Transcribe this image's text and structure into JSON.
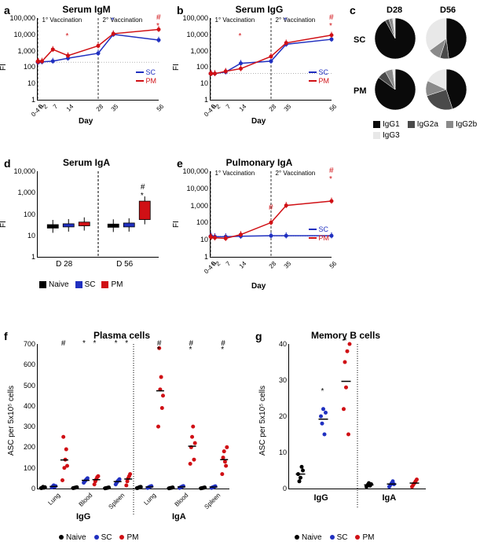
{
  "colors": {
    "sc": "#2030c0",
    "pm": "#d01015",
    "naive": "#000000",
    "igg1": "#0a0a0a",
    "igg2a": "#4a4a4a",
    "igg2b": "#8a8a8a",
    "igg3": "#e8e8e8",
    "grid": "#bbbbbb"
  },
  "panels": {
    "a": {
      "label": "a",
      "title": "Serum IgM",
      "ylabel": "FI",
      "xlabel": "Day",
      "ylim": [
        1,
        100000
      ],
      "yticks": [
        1,
        10,
        100,
        1000,
        10000,
        100000
      ],
      "xticks": [
        "0",
        "0-4 h",
        "2",
        "7",
        "14",
        "28",
        "35",
        "56"
      ],
      "xvals": [
        0,
        0.3,
        2,
        7,
        14,
        28,
        35,
        56
      ],
      "vac1": "1° Vaccination",
      "vac2": "2° Vaccination",
      "series": {
        "SC": [
          200,
          200,
          210,
          230,
          350,
          700,
          10000,
          4500
        ],
        "PM": [
          220,
          220,
          230,
          1200,
          500,
          2000,
          11000,
          20000
        ]
      },
      "type": "line_log"
    },
    "b": {
      "label": "b",
      "title": "Serum IgG",
      "ylabel": "FI",
      "xlabel": "Day",
      "ylim": [
        1,
        100000
      ],
      "yticks": [
        1,
        10,
        100,
        1000,
        10000,
        100000
      ],
      "xticks": [
        "0",
        "0-4 h",
        "2",
        "7",
        "14",
        "28",
        "35",
        "56"
      ],
      "xvals": [
        0,
        0.3,
        2,
        7,
        14,
        28,
        35,
        56
      ],
      "vac1": "1° Vaccination",
      "vac2": "2° Vaccination",
      "series": {
        "SC": [
          40,
          40,
          40,
          50,
          170,
          230,
          2500,
          5000
        ],
        "PM": [
          40,
          40,
          40,
          55,
          80,
          450,
          3000,
          9000
        ]
      },
      "type": "line_log"
    },
    "c": {
      "label": "c",
      "col1": "D28",
      "col2": "D56",
      "row1": "SC",
      "row2": "PM",
      "legend": [
        "IgG1",
        "IgG2a",
        "IgG2b",
        "IgG3"
      ],
      "pies": {
        "SC_D28": [
          92,
          3,
          3,
          2
        ],
        "SC_D56": [
          48,
          7,
          10,
          35
        ],
        "PM_D28": [
          85,
          7,
          6,
          2
        ],
        "PM_D56": [
          45,
          25,
          12,
          18
        ]
      },
      "type": "pies"
    },
    "d": {
      "label": "d",
      "title": "Serum IgA",
      "ylabel": "FI",
      "ylim": [
        1,
        10000
      ],
      "yticks": [
        1,
        10,
        100,
        1000,
        10000
      ],
      "groups": [
        "D 28",
        "D 56"
      ],
      "series": [
        "Naive",
        "SC",
        "PM"
      ],
      "data": {
        "D28": {
          "Naive": [
            22,
            32
          ],
          "SC": [
            25,
            35
          ],
          "PM": [
            28,
            42
          ]
        },
        "D56": {
          "Naive": [
            24,
            34
          ],
          "SC": [
            25,
            38
          ],
          "PM": [
            55,
            400
          ]
        }
      },
      "type": "box_log"
    },
    "e": {
      "label": "e",
      "title": "Pulmonary IgA",
      "ylabel": "FI",
      "xlabel": "Day",
      "ylim": [
        1,
        100000
      ],
      "yticks": [
        1,
        10,
        100,
        1000,
        10000,
        100000
      ],
      "xticks": [
        "0",
        "0-4 h",
        "2",
        "7",
        "14",
        "28",
        "35",
        "56"
      ],
      "xvals": [
        0,
        0.3,
        2,
        7,
        14,
        28,
        35,
        56
      ],
      "vac1": "1° Vaccination",
      "vac2": "2° Vaccination",
      "series": {
        "SC": [
          16,
          16,
          15,
          15,
          16,
          17,
          17,
          17
        ],
        "PM": [
          15,
          14,
          13,
          12,
          20,
          100,
          1000,
          1800
        ]
      },
      "type": "line_log"
    },
    "f": {
      "label": "f",
      "title": "Plasma cells",
      "ylabel": "ASC per 5x10⁵ cells",
      "ylim": [
        0,
        700
      ],
      "yticks": [
        0,
        100,
        200,
        300,
        400,
        500,
        600,
        700
      ],
      "major": [
        "IgG",
        "IgA"
      ],
      "minor": [
        "Lung",
        "Blood",
        "Spleen"
      ],
      "series": [
        "Naive",
        "SC",
        "PM"
      ],
      "data": {
        "IgG": {
          "Lung": {
            "Naive": [
              2,
              3,
              8,
              4,
              6
            ],
            "SC": [
              5,
              10,
              15,
              8,
              12
            ],
            "PM": [
              40,
              250,
              100,
              140,
              190,
              110
            ]
          },
          "Blood": {
            "Naive": [
              2,
              3,
              4,
              5,
              6
            ],
            "SC": [
              28,
              35,
              40,
              45,
              50
            ],
            "PM": [
              20,
              35,
              45,
              55,
              60
            ]
          },
          "Spleen": {
            "Naive": [
              1,
              2,
              3,
              4,
              5
            ],
            "SC": [
              20,
              28,
              35,
              40,
              45
            ],
            "PM": [
              15,
              35,
              50,
              60,
              70
            ]
          }
        },
        "IgA": {
          "Lung": {
            "Naive": [
              2,
              3,
              5,
              7,
              8
            ],
            "SC": [
              3,
              5,
              8,
              10,
              12
            ],
            "PM": [
              300,
              680,
              480,
              540,
              390,
              450
            ]
          },
          "Blood": {
            "Naive": [
              1,
              2,
              3,
              4,
              5
            ],
            "SC": [
              3,
              5,
              8,
              10,
              12
            ],
            "PM": [
              120,
              200,
              250,
              300,
              140,
              220
            ]
          },
          "Spleen": {
            "Naive": [
              1,
              2,
              3,
              4,
              5
            ],
            "SC": [
              3,
              5,
              7,
              9,
              11
            ],
            "PM": [
              70,
              150,
              180,
              130,
              110,
              200
            ]
          }
        }
      },
      "type": "scatter"
    },
    "g": {
      "label": "g",
      "title": "Memory B cells",
      "ylabel": "ASC per 5x10⁵ cells",
      "ylim": [
        0,
        40
      ],
      "yticks": [
        0,
        10,
        20,
        30,
        40
      ],
      "major": [
        "IgG",
        "IgA"
      ],
      "series": [
        "Naive",
        "SC",
        "PM"
      ],
      "data": {
        "IgG": {
          "Naive": [
            4,
            2,
            3,
            6,
            5
          ],
          "SC": [
            20,
            18,
            22,
            15,
            21
          ],
          "PM": [
            22,
            35,
            28,
            38,
            15,
            40
          ]
        },
        "IgA": {
          "Naive": [
            0.5,
            1,
            1.5,
            0.8,
            1.2
          ],
          "SC": [
            0.5,
            1,
            1.5,
            2,
            1.2
          ],
          "PM": [
            0.5,
            1,
            1.5,
            2,
            2.5
          ]
        }
      },
      "type": "scatter"
    }
  }
}
